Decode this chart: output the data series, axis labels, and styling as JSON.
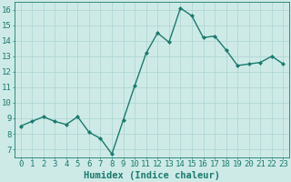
{
  "x": [
    0,
    1,
    2,
    3,
    4,
    5,
    6,
    7,
    8,
    9,
    10,
    11,
    12,
    13,
    14,
    15,
    16,
    17,
    18,
    19,
    20,
    21,
    22,
    23
  ],
  "y": [
    8.5,
    8.8,
    9.1,
    8.8,
    8.6,
    9.1,
    8.1,
    7.7,
    6.7,
    8.9,
    11.1,
    13.2,
    14.5,
    13.9,
    16.1,
    15.6,
    14.2,
    14.3,
    13.4,
    12.4,
    12.5,
    12.6,
    13.0,
    12.5
  ],
  "line_color": "#1a7a6e",
  "marker": "D",
  "marker_size": 2.0,
  "line_width": 1.0,
  "bg_color": "#ceeae7",
  "grid_color": "#b0d8d4",
  "tick_color": "#1a7a6e",
  "label_color": "#1a7a6e",
  "xlabel": "Humidex (Indice chaleur)",
  "ylim": [
    6.5,
    16.5
  ],
  "yticks": [
    7,
    8,
    9,
    10,
    11,
    12,
    13,
    14,
    15,
    16
  ],
  "xticks": [
    0,
    1,
    2,
    3,
    4,
    5,
    6,
    7,
    8,
    9,
    10,
    11,
    12,
    13,
    14,
    15,
    16,
    17,
    18,
    19,
    20,
    21,
    22,
    23
  ],
  "xlim": [
    -0.5,
    23.5
  ],
  "xlabel_fontsize": 7.5,
  "tick_fontsize": 6.5,
  "fig_width": 3.2,
  "fig_height": 2.0,
  "dpi": 100
}
